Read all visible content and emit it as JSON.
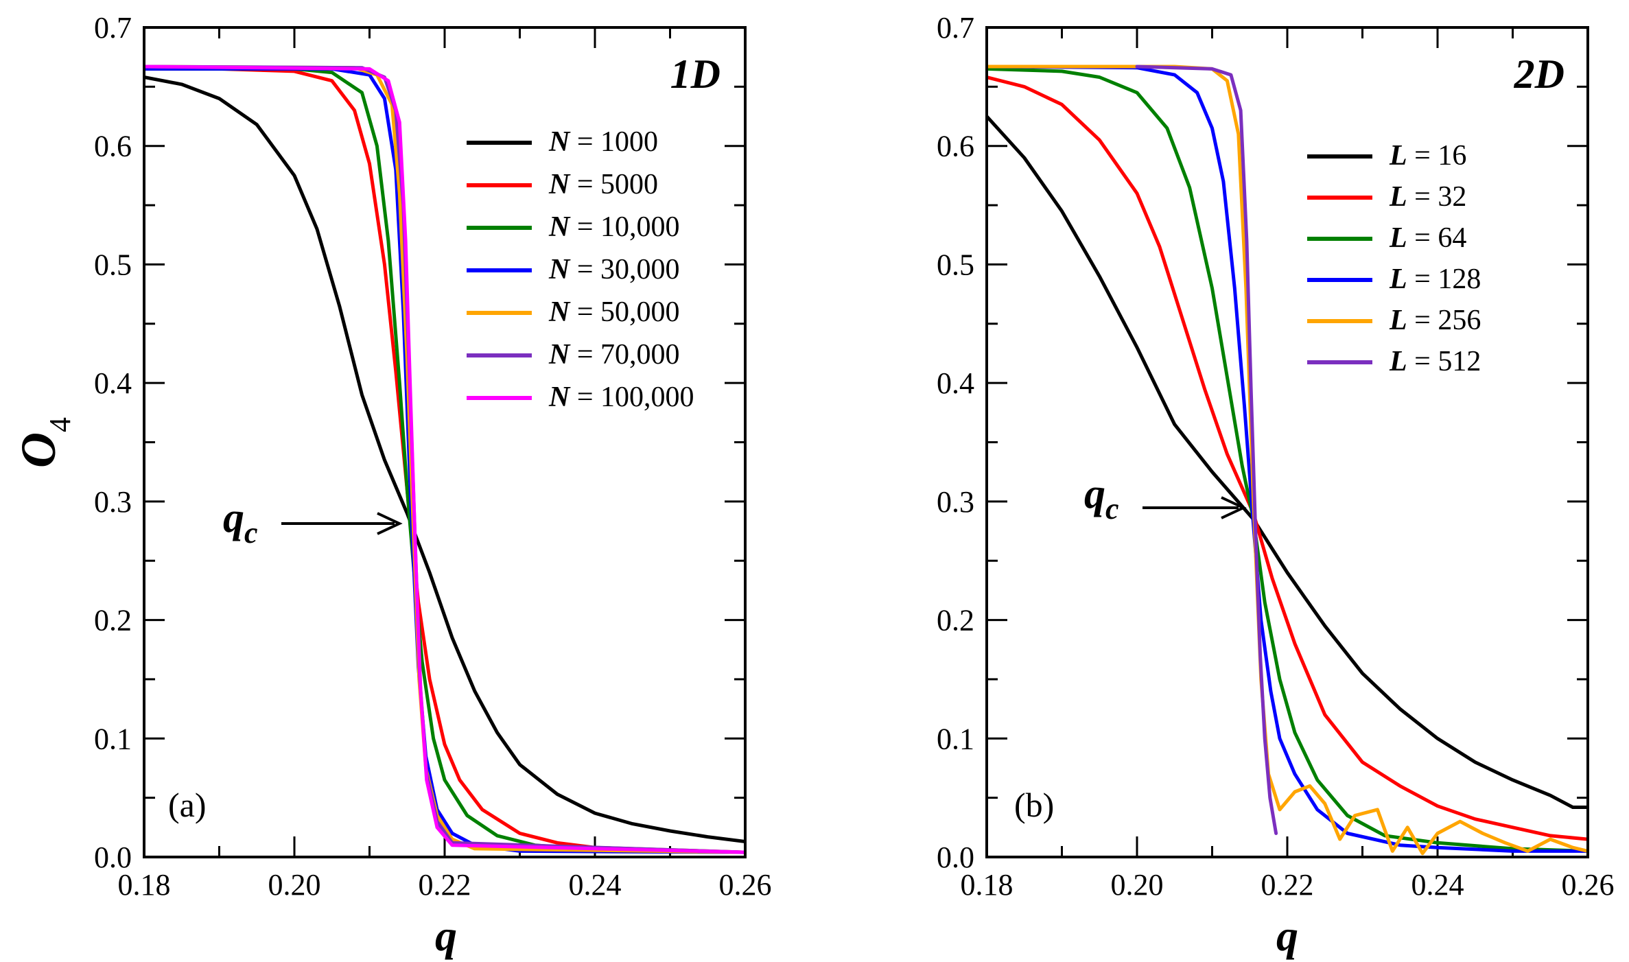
{
  "chart_data": [
    {
      "type": "line",
      "panel_tag": "1D",
      "corner_label": "(a)",
      "xlabel": "q",
      "ylabel": "O",
      "ylabel_subscript": "4",
      "xlim": [
        0.18,
        0.26
      ],
      "ylim": [
        0.0,
        0.7
      ],
      "x_ticks": [
        "0.18",
        "0.20",
        "0.22",
        "0.24",
        "0.26"
      ],
      "y_ticks": [
        "0.0",
        "0.1",
        "0.2",
        "0.3",
        "0.4",
        "0.5",
        "0.6",
        "0.7"
      ],
      "legend_var": "N",
      "legend_position": "top-right",
      "annotation": {
        "label": "q",
        "subscript": "c",
        "x": 0.2155,
        "y": 0.285
      },
      "series": [
        {
          "name": "1000",
          "color": "#000000",
          "x": [
            0.18,
            0.185,
            0.19,
            0.195,
            0.2,
            0.203,
            0.206,
            0.209,
            0.212,
            0.215,
            0.218,
            0.221,
            0.224,
            0.227,
            0.23,
            0.235,
            0.24,
            0.245,
            0.25,
            0.255,
            0.26
          ],
          "y": [
            0.658,
            0.652,
            0.64,
            0.618,
            0.575,
            0.53,
            0.465,
            0.39,
            0.335,
            0.29,
            0.24,
            0.185,
            0.14,
            0.105,
            0.078,
            0.053,
            0.037,
            0.028,
            0.022,
            0.017,
            0.013
          ]
        },
        {
          "name": "5000",
          "color": "#ff0000",
          "x": [
            0.18,
            0.19,
            0.2,
            0.205,
            0.208,
            0.21,
            0.212,
            0.2135,
            0.215,
            0.2165,
            0.218,
            0.22,
            0.222,
            0.225,
            0.23,
            0.235,
            0.24,
            0.25,
            0.26
          ],
          "y": [
            0.665,
            0.665,
            0.663,
            0.655,
            0.63,
            0.585,
            0.5,
            0.41,
            0.31,
            0.215,
            0.15,
            0.095,
            0.065,
            0.04,
            0.02,
            0.012,
            0.008,
            0.006,
            0.004
          ]
        },
        {
          "name": "10,000",
          "color": "#008000",
          "x": [
            0.18,
            0.2,
            0.205,
            0.209,
            0.211,
            0.2125,
            0.214,
            0.215,
            0.216,
            0.217,
            0.2185,
            0.22,
            0.223,
            0.227,
            0.232,
            0.24,
            0.26
          ],
          "y": [
            0.665,
            0.665,
            0.662,
            0.645,
            0.6,
            0.52,
            0.4,
            0.31,
            0.235,
            0.165,
            0.1,
            0.065,
            0.035,
            0.018,
            0.01,
            0.006,
            0.004
          ]
        },
        {
          "name": "30,000",
          "color": "#0000ff",
          "x": [
            0.18,
            0.205,
            0.21,
            0.212,
            0.2135,
            0.2145,
            0.2155,
            0.2165,
            0.2175,
            0.219,
            0.221,
            0.224,
            0.23,
            0.26
          ],
          "y": [
            0.665,
            0.665,
            0.66,
            0.64,
            0.58,
            0.46,
            0.3,
            0.16,
            0.085,
            0.04,
            0.02,
            0.01,
            0.005,
            0.004
          ]
        },
        {
          "name": "50,000",
          "color": "#ffa500",
          "x": [
            0.18,
            0.208,
            0.211,
            0.213,
            0.214,
            0.215,
            0.2158,
            0.2166,
            0.2175,
            0.219,
            0.221,
            0.224,
            0.26
          ],
          "y": [
            0.667,
            0.666,
            0.66,
            0.635,
            0.56,
            0.42,
            0.285,
            0.15,
            0.075,
            0.035,
            0.015,
            0.007,
            0.004
          ]
        },
        {
          "name": "70,000",
          "color": "#7b2fbf",
          "x": [
            0.18,
            0.209,
            0.212,
            0.2135,
            0.2145,
            0.2153,
            0.216,
            0.2167,
            0.2176,
            0.219,
            0.221,
            0.26
          ],
          "y": [
            0.667,
            0.666,
            0.658,
            0.63,
            0.55,
            0.41,
            0.28,
            0.15,
            0.07,
            0.03,
            0.012,
            0.004
          ]
        },
        {
          "name": "100,000",
          "color": "#ff00ff",
          "x": [
            0.18,
            0.21,
            0.2125,
            0.214,
            0.2148,
            0.2155,
            0.2161,
            0.2168,
            0.2176,
            0.219,
            0.221,
            0.26
          ],
          "y": [
            0.667,
            0.665,
            0.655,
            0.62,
            0.52,
            0.38,
            0.26,
            0.14,
            0.065,
            0.025,
            0.01,
            0.004
          ]
        }
      ]
    },
    {
      "type": "line",
      "panel_tag": "2D",
      "corner_label": "(b)",
      "xlabel": "q",
      "ylabel": "",
      "ylabel_subscript": "",
      "xlim": [
        0.18,
        0.26
      ],
      "ylim": [
        0.0,
        0.7
      ],
      "x_ticks": [
        "0.18",
        "0.20",
        "0.22",
        "0.24",
        "0.26"
      ],
      "y_ticks": [
        "0.0",
        "0.1",
        "0.2",
        "0.3",
        "0.4",
        "0.5",
        "0.6",
        "0.7"
      ],
      "legend_var": "L",
      "legend_position": "top-right",
      "annotation": {
        "label": "q",
        "subscript": "c",
        "x": 0.2155,
        "y": 0.295
      },
      "series": [
        {
          "name": "16",
          "color": "#000000",
          "x": [
            0.18,
            0.185,
            0.19,
            0.195,
            0.2,
            0.205,
            0.21,
            0.2155,
            0.22,
            0.225,
            0.23,
            0.235,
            0.24,
            0.245,
            0.25,
            0.255,
            0.258,
            0.26
          ],
          "y": [
            0.625,
            0.59,
            0.545,
            0.49,
            0.43,
            0.365,
            0.325,
            0.285,
            0.24,
            0.195,
            0.155,
            0.125,
            0.1,
            0.08,
            0.065,
            0.052,
            0.042,
            0.042
          ]
        },
        {
          "name": "32",
          "color": "#ff0000",
          "x": [
            0.18,
            0.185,
            0.19,
            0.195,
            0.2,
            0.203,
            0.206,
            0.209,
            0.212,
            0.2155,
            0.218,
            0.221,
            0.225,
            0.23,
            0.235,
            0.24,
            0.245,
            0.25,
            0.255,
            0.26
          ],
          "y": [
            0.658,
            0.65,
            0.635,
            0.605,
            0.56,
            0.515,
            0.455,
            0.395,
            0.34,
            0.29,
            0.235,
            0.18,
            0.12,
            0.08,
            0.06,
            0.043,
            0.032,
            0.025,
            0.018,
            0.015
          ]
        },
        {
          "name": "64",
          "color": "#008000",
          "x": [
            0.18,
            0.19,
            0.195,
            0.2,
            0.204,
            0.207,
            0.21,
            0.212,
            0.214,
            0.2155,
            0.217,
            0.219,
            0.221,
            0.224,
            0.228,
            0.233,
            0.24,
            0.25,
            0.26
          ],
          "y": [
            0.665,
            0.663,
            0.658,
            0.645,
            0.615,
            0.565,
            0.48,
            0.405,
            0.33,
            0.285,
            0.215,
            0.15,
            0.105,
            0.065,
            0.035,
            0.018,
            0.012,
            0.007,
            0.005
          ]
        },
        {
          "name": "128",
          "color": "#0000ff",
          "x": [
            0.18,
            0.2,
            0.205,
            0.208,
            0.21,
            0.2115,
            0.213,
            0.2143,
            0.2155,
            0.2165,
            0.2178,
            0.219,
            0.221,
            0.224,
            0.228,
            0.235,
            0.24,
            0.25,
            0.26
          ],
          "y": [
            0.667,
            0.666,
            0.66,
            0.645,
            0.615,
            0.57,
            0.48,
            0.38,
            0.28,
            0.2,
            0.14,
            0.1,
            0.07,
            0.04,
            0.02,
            0.01,
            0.008,
            0.005,
            0.005
          ]
        },
        {
          "name": "256",
          "color": "#ffa500",
          "x": [
            0.18,
            0.205,
            0.21,
            0.212,
            0.2135,
            0.2145,
            0.2155,
            0.2165,
            0.2175,
            0.219,
            0.221,
            0.223,
            0.225,
            0.227,
            0.229,
            0.232,
            0.234,
            0.236,
            0.238,
            0.24,
            0.243,
            0.246,
            0.249,
            0.252,
            0.255,
            0.258,
            0.26
          ],
          "y": [
            0.667,
            0.667,
            0.665,
            0.655,
            0.61,
            0.48,
            0.3,
            0.15,
            0.07,
            0.04,
            0.055,
            0.06,
            0.045,
            0.015,
            0.035,
            0.04,
            0.005,
            0.025,
            0.003,
            0.02,
            0.03,
            0.02,
            0.012,
            0.005,
            0.015,
            0.008,
            0.005
          ]
        },
        {
          "name": "512",
          "color": "#7b2fbf",
          "x": [
            0.2,
            0.21,
            0.2125,
            0.2138,
            0.2146,
            0.2152,
            0.2158,
            0.2164,
            0.217,
            0.2177,
            0.2185
          ],
          "y": [
            0.667,
            0.665,
            0.66,
            0.63,
            0.52,
            0.39,
            0.27,
            0.17,
            0.1,
            0.05,
            0.02
          ]
        }
      ]
    }
  ]
}
